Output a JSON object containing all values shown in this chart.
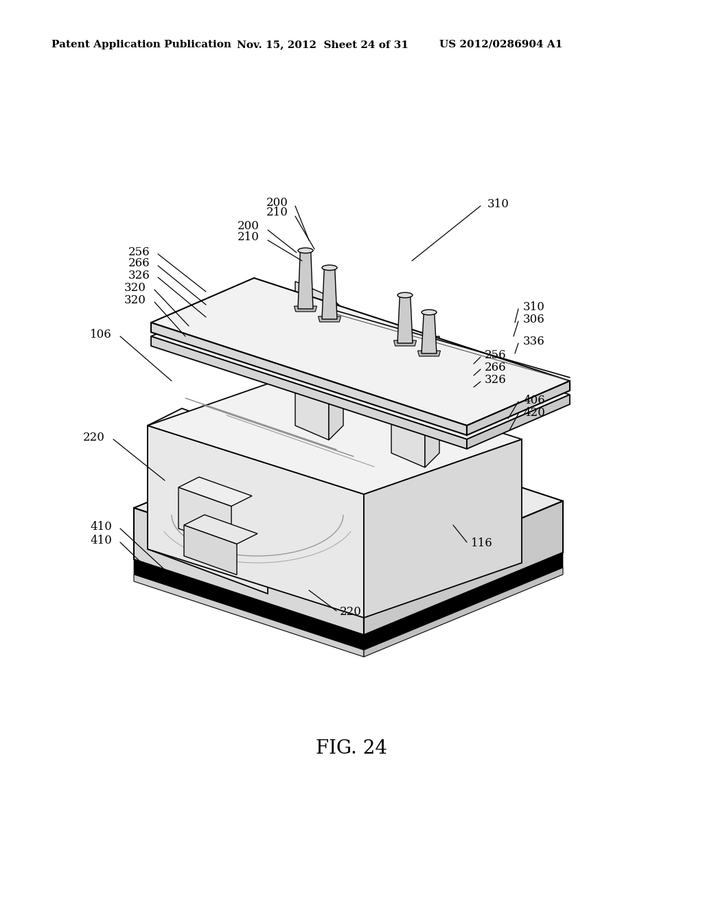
{
  "title": "FIG. 24",
  "header_left": "Patent Application Publication",
  "header_mid": "Nov. 15, 2012  Sheet 24 of 31",
  "header_right": "US 2012/0286904 A1",
  "bg_color": "#ffffff",
  "line_color": "#000000"
}
